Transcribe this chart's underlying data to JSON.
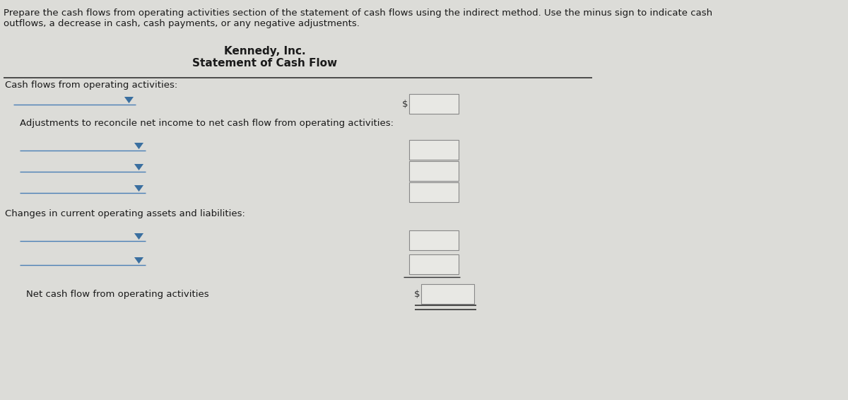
{
  "bg_color": "#dcdcd8",
  "title_line1": "Kennedy, Inc.",
  "title_line2": "Statement of Cash Flow",
  "instruction_line1": "Prepare the cash flows from operating activities section of the statement of cash flows using the indirect method. Use the minus sign to indicate cash",
  "instruction_line2": "outflows, a decrease in cash, cash payments, or any negative adjustments.",
  "section1": "Cash flows from operating activities:",
  "section2": "Adjustments to reconcile net income to net cash flow from operating activities:",
  "section3": "Changes in current operating assets and liabilities:",
  "section4": "Net cash flow from operating activities",
  "font_size_instruction": 9.5,
  "font_size_title": 11.0,
  "font_size_body": 9.5,
  "box_fill_color": "#e8e8e4",
  "box_edge_color": "#888888",
  "text_color": "#1a1a1a",
  "line_color": "#4a7fb5",
  "dark_line_color": "#333333",
  "dollar_sign_color": "#333333",
  "arrow_color": "#3a6fa0"
}
